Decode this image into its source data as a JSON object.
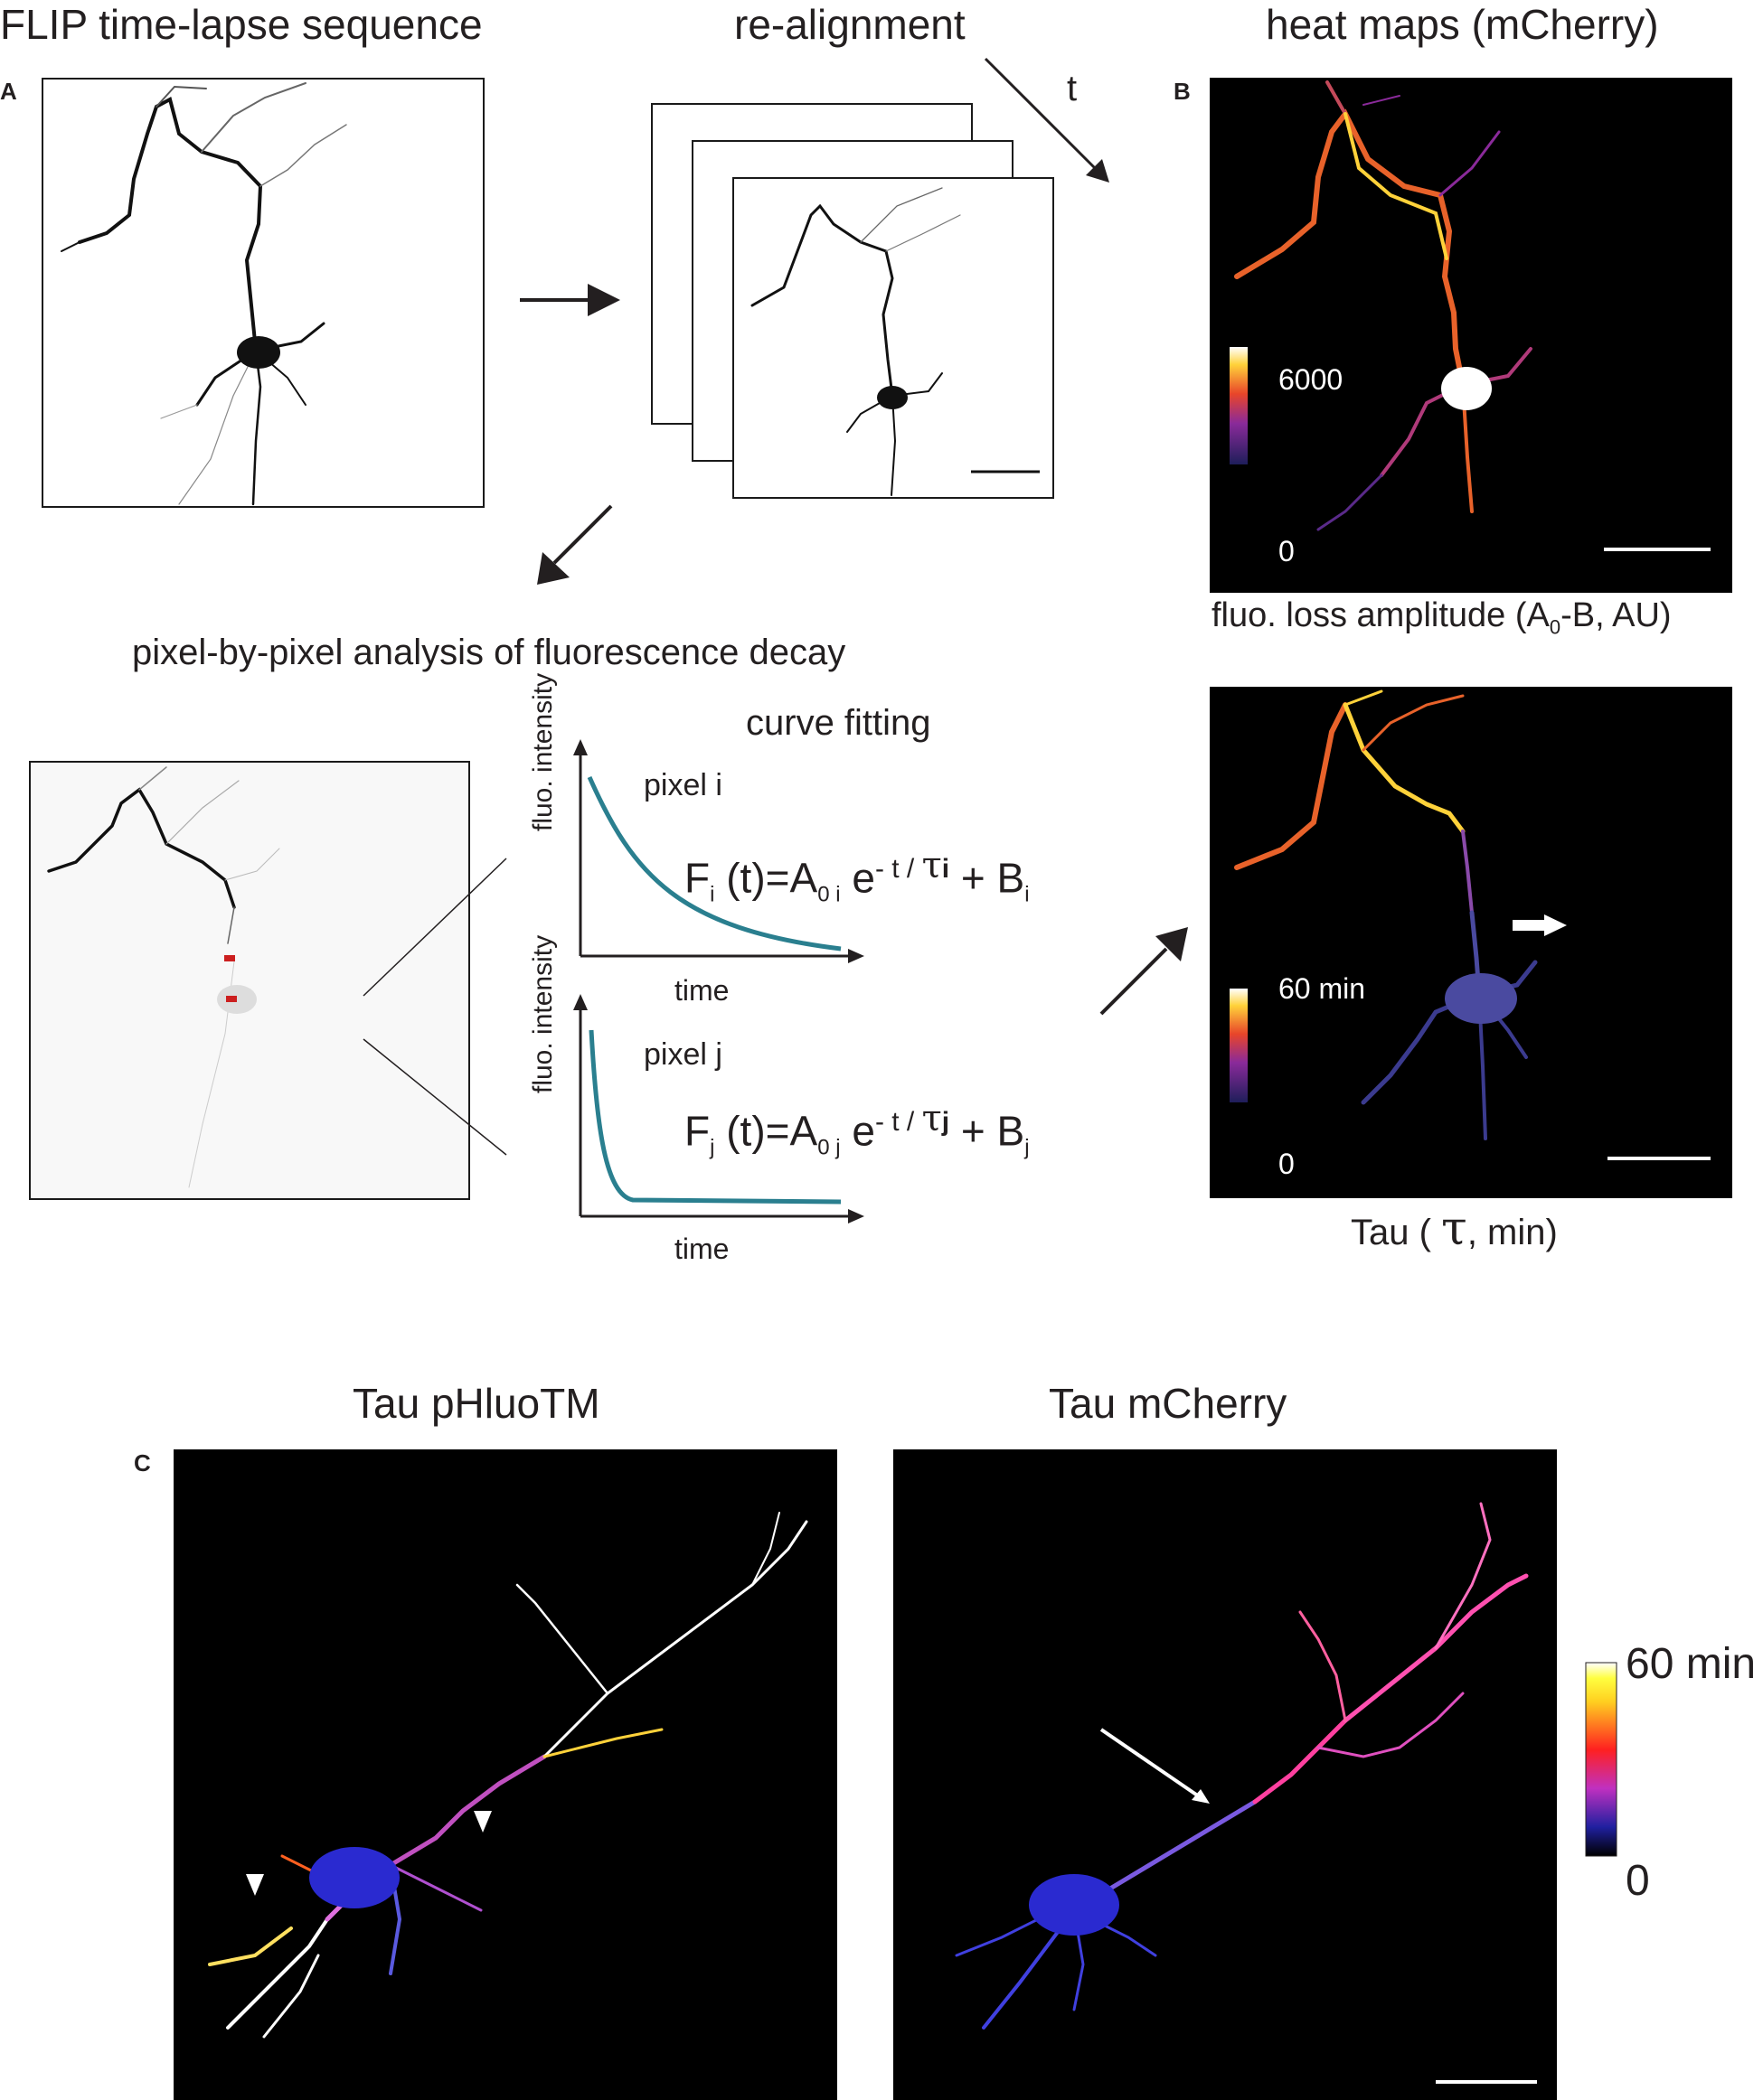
{
  "panel_a": {
    "letter": "A",
    "title_sequence": "FLIP time-lapse sequence",
    "title_realign": "re-alignment",
    "time_label": "t",
    "title_analysis": "pixel-by-pixel analysis of fluorescence decay",
    "curve_fitting": "curve fitting",
    "pixel_i": "pixel i",
    "pixel_j": "pixel j",
    "ylabel": "fluo. intensity",
    "xlabel": "time",
    "eq_i": {
      "F": "F",
      "sub_i": "i",
      "mid": " (t)=A",
      "sub_0i": "0 i",
      "e": " e",
      "sup": "- t / ",
      "tau": "τ",
      "tau_sub": "i",
      "tail": " + B",
      "b_sub": "i"
    },
    "eq_j": {
      "F": "F",
      "sub_j": "j",
      "mid": " (t)=A",
      "sub_0j": "0 j",
      "e": " e",
      "sup": "- t / ",
      "tau": "τ",
      "tau_sub": "j",
      "tail": " + B",
      "b_sub": "j"
    }
  },
  "panel_b": {
    "letter": "B",
    "title": "heat maps (mCherry)",
    "amp_max": "6000",
    "amp_min": "0",
    "amp_caption_pre": "fluo. loss amplitude (A",
    "amp_caption_sub": "0",
    "amp_caption_post": "-B, AU)",
    "tau_max": "60 min",
    "tau_min": "0",
    "tau_caption_pre": "Tau ( ",
    "tau_caption_sym": "τ",
    "tau_caption_post": ", min)"
  },
  "panel_c": {
    "letter": "C",
    "title_left": "Tau pHluoTM",
    "title_right": "Tau mCherry",
    "cb_max": "60 min",
    "cb_min": "0"
  },
  "colors": {
    "curve": "#2a7f8f",
    "marker": "#cc1f1f",
    "fire_low": "#3b3b8f",
    "fire_high": "#ffffff"
  }
}
